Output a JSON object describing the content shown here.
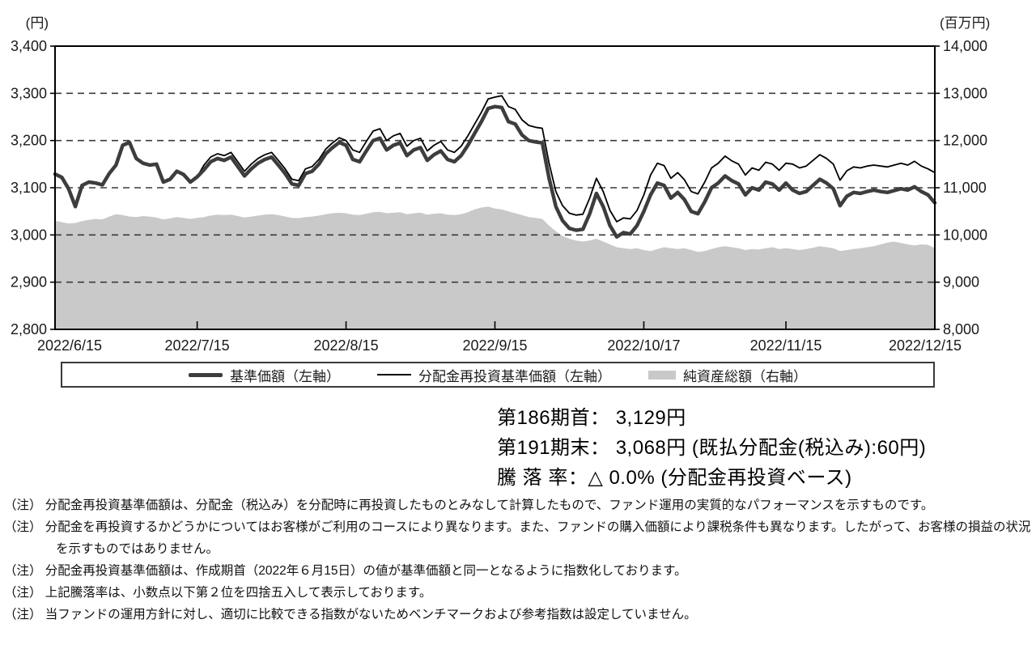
{
  "chart_data": {
    "type": "line",
    "title": "",
    "left_axis": {
      "unit": "(円)",
      "min": 2800,
      "max": 3400,
      "tick_step": 100,
      "tick_labels": [
        "3,400",
        "3,300",
        "3,200",
        "3,100",
        "3,000",
        "2,900",
        "2,800"
      ]
    },
    "right_axis": {
      "unit": "(百万円)",
      "min": 8000,
      "max": 14000,
      "tick_step": 1000,
      "tick_labels": [
        "14,000",
        "13,000",
        "12,000",
        "11,000",
        "10,000",
        "9,000",
        "8,000"
      ]
    },
    "x_axis": {
      "tick_labels": [
        "2022/6/15",
        "2022/7/15",
        "2022/8/15",
        "2022/9/15",
        "2022/10/17",
        "2022/11/15",
        "2022/12/15"
      ],
      "tick_indices": [
        0,
        21,
        43,
        65,
        87,
        108,
        130
      ]
    },
    "grid": "dashed-horizontal",
    "legend_position": "bottom-box",
    "series": [
      {
        "name": "基準価額（左軸）",
        "axis": "left",
        "style": "thick-line",
        "color": "#3d3d3d",
        "values": [
          3129,
          3122,
          3098,
          3060,
          3105,
          3112,
          3110,
          3106,
          3130,
          3148,
          3190,
          3196,
          3162,
          3152,
          3148,
          3150,
          3112,
          3118,
          3135,
          3128,
          3112,
          3123,
          3138,
          3155,
          3162,
          3158,
          3165,
          3145,
          3125,
          3140,
          3152,
          3160,
          3165,
          3148,
          3130,
          3108,
          3105,
          3130,
          3135,
          3150,
          3172,
          3185,
          3196,
          3190,
          3160,
          3155,
          3178,
          3200,
          3205,
          3180,
          3190,
          3195,
          3168,
          3180,
          3185,
          3158,
          3170,
          3178,
          3160,
          3155,
          3168,
          3190,
          3215,
          3240,
          3268,
          3272,
          3270,
          3240,
          3235,
          3212,
          3200,
          3197,
          3195,
          3120,
          3060,
          3030,
          3014,
          3010,
          3012,
          3045,
          3088,
          3060,
          3020,
          2996,
          3005,
          3002,
          3020,
          3050,
          3085,
          3110,
          3105,
          3078,
          3090,
          3075,
          3050,
          3045,
          3070,
          3100,
          3110,
          3125,
          3115,
          3108,
          3085,
          3100,
          3095,
          3112,
          3108,
          3095,
          3110,
          3095,
          3088,
          3092,
          3105,
          3118,
          3110,
          3098,
          3062,
          3082,
          3090,
          3088,
          3092,
          3095,
          3092,
          3090,
          3094,
          3098,
          3095,
          3102,
          3092,
          3085,
          3068
        ]
      },
      {
        "name": "分配金再投資基準価額（左軸）",
        "axis": "left",
        "style": "thin-line",
        "color": "#000000",
        "values": [
          3129,
          3122,
          3098,
          3060,
          3105,
          3112,
          3110,
          3106,
          3130,
          3148,
          3190,
          3196,
          3162,
          3152,
          3148,
          3150,
          3112,
          3118,
          3135,
          3128,
          3112,
          3123,
          3148,
          3165,
          3172,
          3168,
          3175,
          3155,
          3135,
          3150,
          3162,
          3170,
          3175,
          3158,
          3140,
          3118,
          3115,
          3140,
          3145,
          3160,
          3182,
          3195,
          3206,
          3200,
          3180,
          3175,
          3198,
          3220,
          3225,
          3200,
          3210,
          3215,
          3188,
          3200,
          3205,
          3178,
          3190,
          3198,
          3180,
          3175,
          3188,
          3210,
          3235,
          3260,
          3288,
          3292,
          3295,
          3272,
          3266,
          3244,
          3232,
          3228,
          3226,
          3152,
          3092,
          3062,
          3046,
          3042,
          3044,
          3078,
          3120,
          3092,
          3052,
          3028,
          3036,
          3034,
          3052,
          3085,
          3127,
          3152,
          3147,
          3120,
          3132,
          3117,
          3092,
          3087,
          3112,
          3142,
          3152,
          3167,
          3157,
          3150,
          3127,
          3142,
          3137,
          3154,
          3150,
          3137,
          3152,
          3150,
          3142,
          3146,
          3158,
          3170,
          3162,
          3150,
          3116,
          3136,
          3144,
          3142,
          3146,
          3148,
          3146,
          3144,
          3148,
          3152,
          3148,
          3156,
          3146,
          3140,
          3132
        ]
      },
      {
        "name": "純資産総額（右軸）",
        "axis": "right",
        "style": "area",
        "color": "#c9c9c9",
        "values": [
          10300,
          10270,
          10240,
          10255,
          10295,
          10320,
          10340,
          10330,
          10390,
          10440,
          10420,
          10390,
          10380,
          10400,
          10390,
          10370,
          10330,
          10350,
          10380,
          10360,
          10340,
          10360,
          10380,
          10410,
          10430,
          10420,
          10430,
          10400,
          10370,
          10390,
          10410,
          10430,
          10440,
          10420,
          10390,
          10360,
          10355,
          10380,
          10390,
          10410,
          10440,
          10460,
          10470,
          10460,
          10430,
          10420,
          10450,
          10480,
          10490,
          10460,
          10470,
          10480,
          10440,
          10460,
          10470,
          10430,
          10450,
          10460,
          10430,
          10420,
          10440,
          10480,
          10540,
          10580,
          10600,
          10560,
          10540,
          10500,
          10460,
          10420,
          10380,
          10360,
          10340,
          10200,
          10080,
          9980,
          9920,
          9880,
          9860,
          9880,
          9920,
          9860,
          9800,
          9740,
          9720,
          9700,
          9720,
          9680,
          9660,
          9700,
          9740,
          9720,
          9700,
          9720,
          9680,
          9640,
          9660,
          9700,
          9740,
          9760,
          9740,
          9720,
          9680,
          9700,
          9690,
          9720,
          9740,
          9700,
          9720,
          9700,
          9680,
          9700,
          9730,
          9760,
          9740,
          9720,
          9660,
          9680,
          9700,
          9720,
          9740,
          9760,
          9800,
          9840,
          9860,
          9830,
          9800,
          9780,
          9800,
          9790,
          9720
        ]
      }
    ]
  },
  "summary": {
    "line1": "第186期首： 3,129円",
    "line2": "第191期末： 3,068円 (既払分配金(税込み):60円)",
    "line3": "騰 落 率：△ 0.0% (分配金再投資ベース)"
  },
  "notes": [
    "（注） 分配金再投資基準価額は、分配金（税込み）を分配時に再投資したものとみなして計算したもので、ファンド運用の実質的なパフォーマンスを示すものです。",
    "（注） 分配金を再投資するかどうかについてはお客様がご利用のコースにより異なります。また、ファンドの購入価額により課税条件も異なります。したがって、お客様の損益の状況を示すものではありません。",
    "（注） 分配金再投資基準価額は、作成期首（2022年６月15日）の値が基準価額と同一となるように指数化しております。",
    "（注） 上記騰落率は、小数点以下第２位を四捨五入して表示しております。",
    "（注） 当ファンドの運用方針に対し、適切に比較できる指数がないためベンチマークおよび参考指数は設定していません。"
  ]
}
